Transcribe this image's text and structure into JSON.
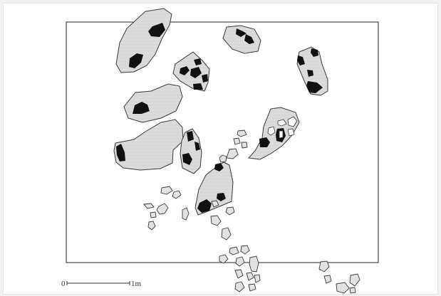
{
  "scale_bar": {
    "start_label": "0",
    "end_label": "1m"
  },
  "colors": {
    "background": "#ffffff",
    "frame": "#3a3a3a",
    "stone_fill": "#e2e2e2",
    "stone_stroke": "#3a3a3a",
    "hatch": "#bcbcbc",
    "dark_patch": "#111111"
  }
}
